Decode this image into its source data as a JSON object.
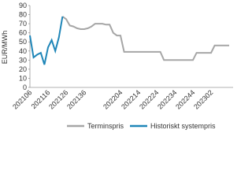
{
  "chart_data": {
    "type": "line",
    "y_label": "EUR/MWh",
    "categories": [
      "202106",
      null,
      null,
      null,
      null,
      "202116",
      null,
      null,
      null,
      null,
      "202126",
      null,
      null,
      null,
      null,
      "202136",
      null,
      null,
      null,
      null,
      null,
      null,
      null,
      null,
      null,
      "202204",
      null,
      null,
      null,
      null,
      "202214",
      null,
      null,
      null,
      null,
      "202224",
      null,
      null,
      null,
      null,
      "202234",
      null,
      null,
      null,
      null,
      "202244",
      null,
      null,
      null,
      null,
      "202302",
      null,
      null,
      null,
      null,
      null
    ],
    "series": [
      {
        "name": "Terminspris",
        "color": "#a6a6a6",
        "values": [
          null,
          null,
          null,
          null,
          null,
          null,
          null,
          null,
          null,
          78,
          75,
          68,
          67,
          65,
          64,
          64,
          65,
          67,
          70,
          70,
          70,
          69,
          69,
          60,
          57,
          57,
          39,
          39,
          39,
          39,
          39,
          39,
          39,
          39,
          39,
          39,
          39,
          30,
          30,
          30,
          30,
          30,
          30,
          30,
          30,
          30,
          38,
          38,
          38,
          38,
          38,
          46,
          46,
          46,
          46,
          46
        ]
      },
      {
        "name": "Historiskt systempris",
        "color": "#1f86b8",
        "values": [
          57,
          33,
          36,
          38,
          25,
          44,
          52,
          40,
          55,
          78,
          null,
          null,
          null,
          null,
          null,
          null,
          null,
          null,
          null,
          null,
          null,
          null,
          null,
          null,
          null,
          null,
          null,
          null,
          null,
          null,
          null,
          null,
          null,
          null,
          null,
          null,
          null,
          null,
          null,
          null,
          null,
          null,
          null,
          null,
          null,
          null,
          null,
          null,
          null,
          null,
          null,
          null,
          null,
          null,
          null,
          null
        ]
      }
    ],
    "ylim": [
      0,
      90
    ],
    "yticks": [
      0,
      10,
      20,
      30,
      40,
      50,
      60,
      70,
      80,
      90
    ],
    "grid": false
  }
}
